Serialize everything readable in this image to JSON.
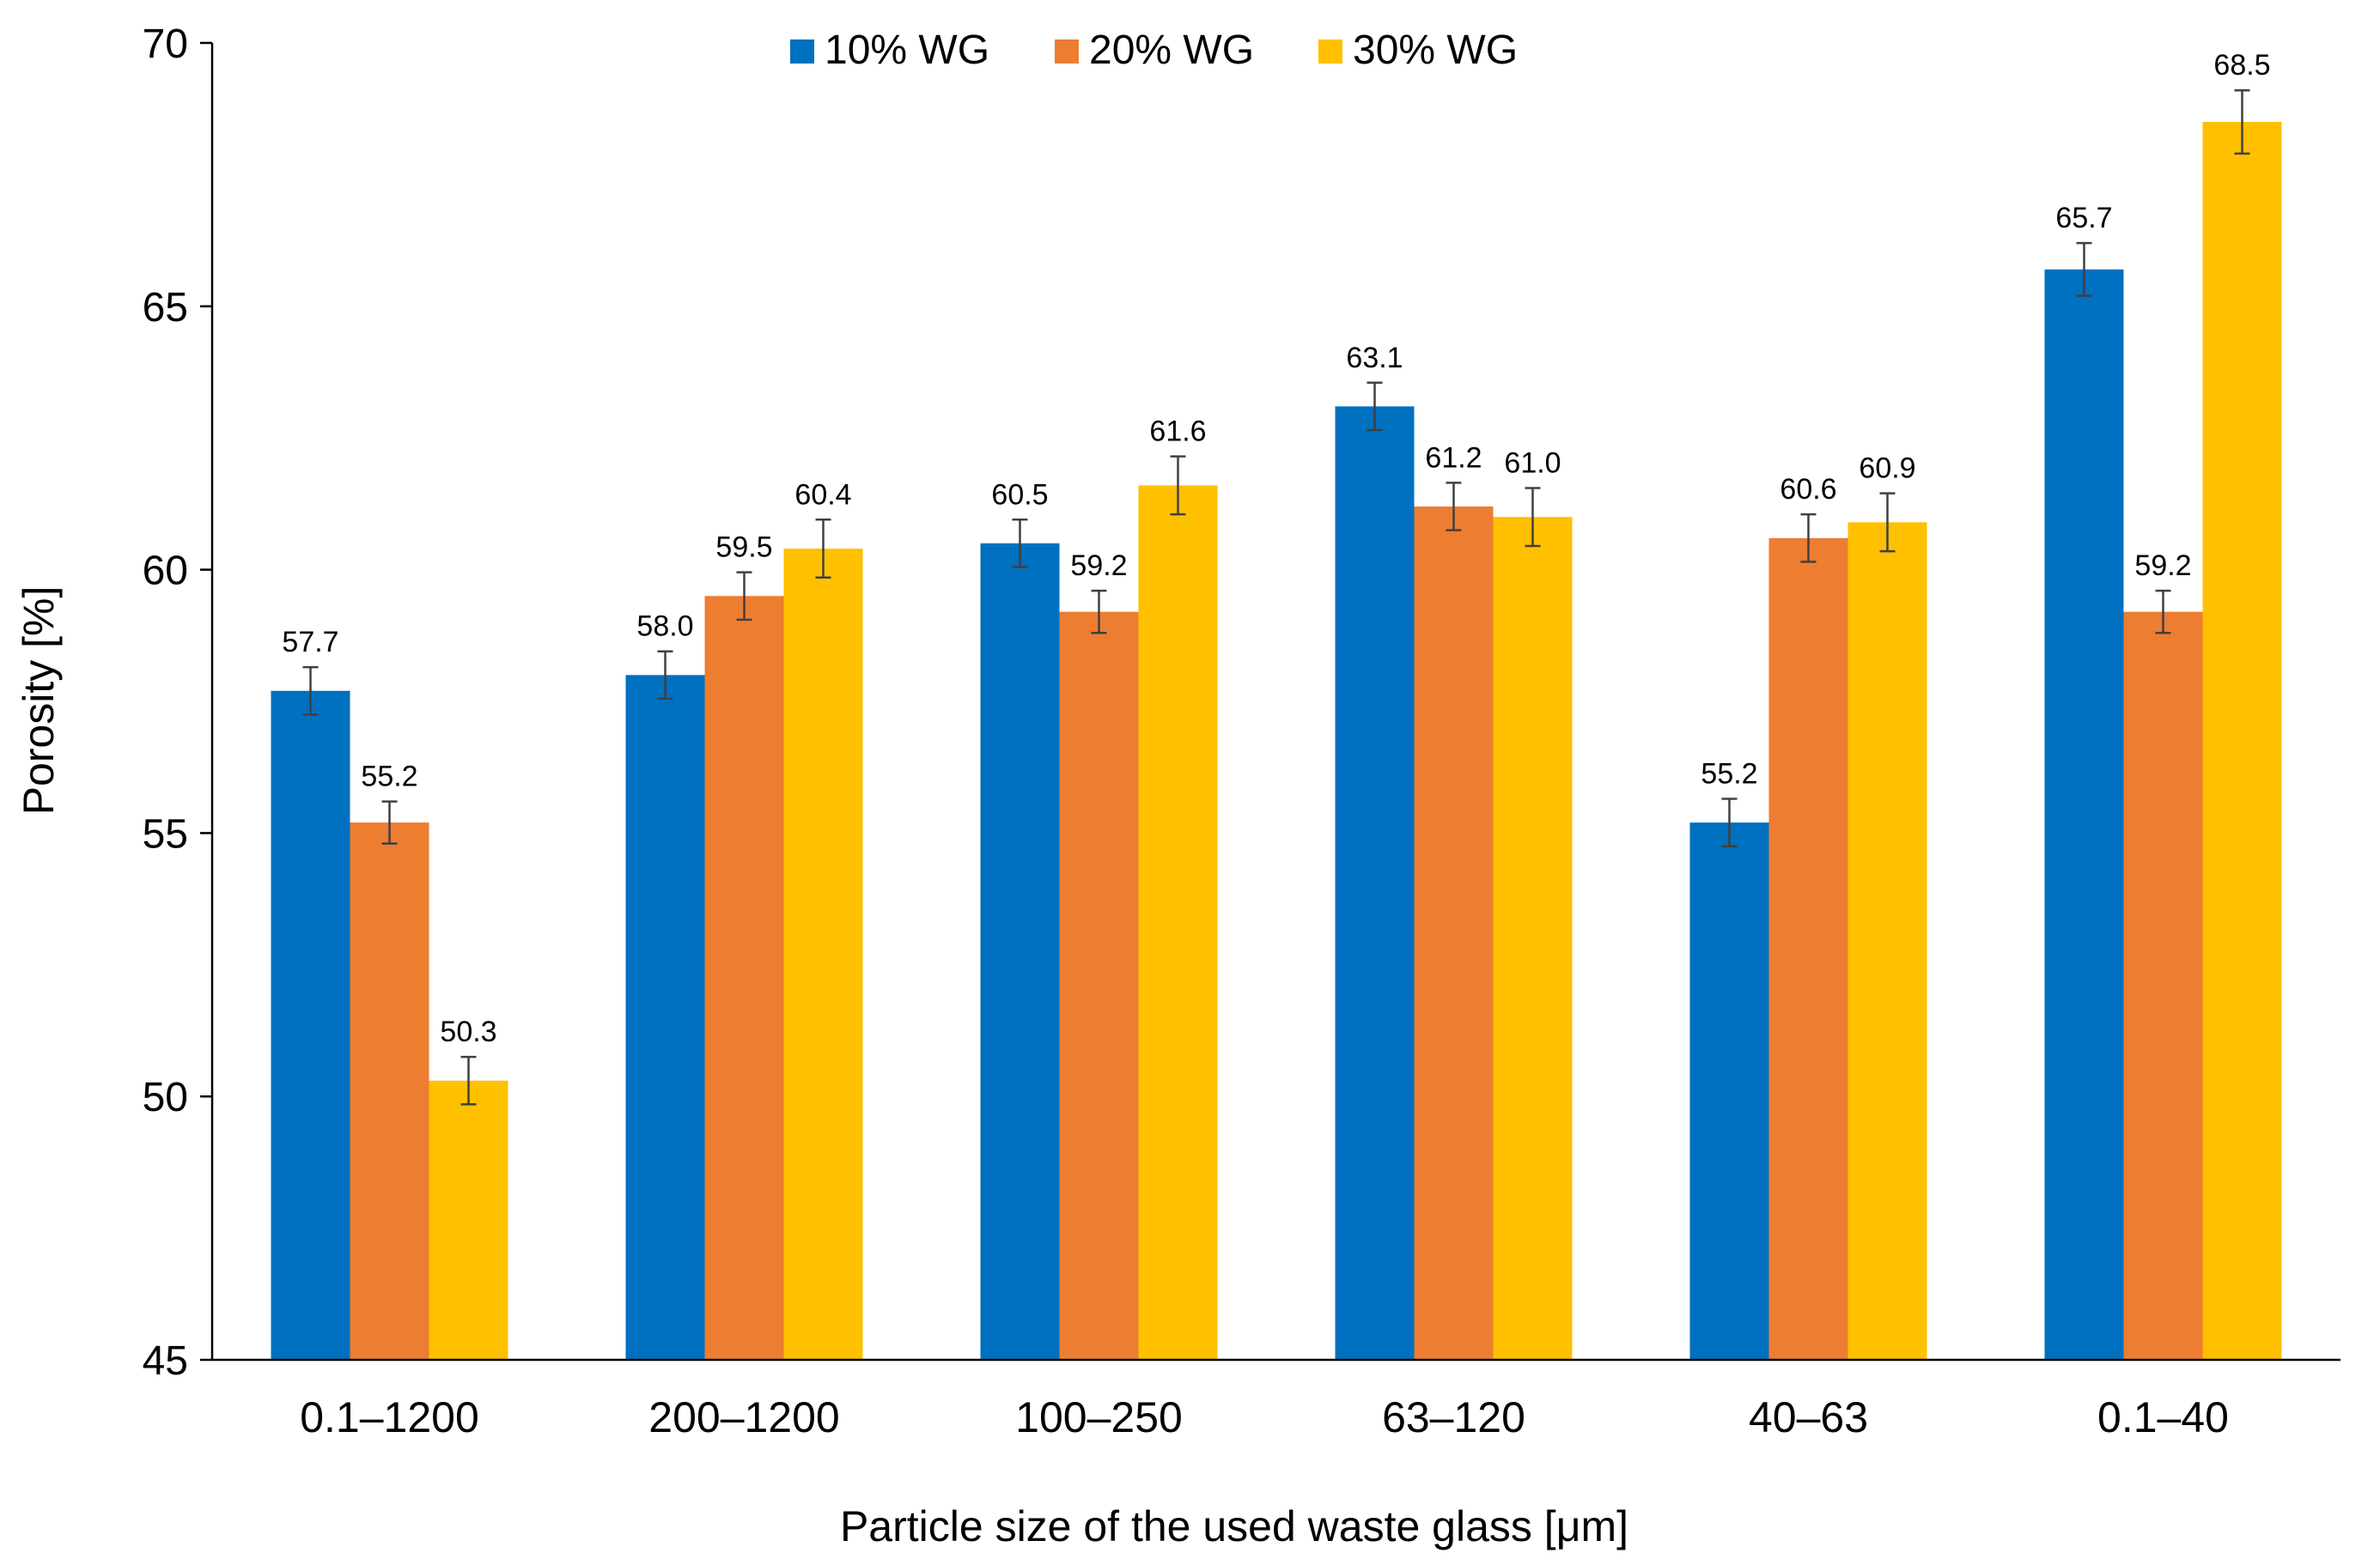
{
  "chart_data": {
    "type": "bar",
    "title": "",
    "xlabel": "Particle size of the used waste glass [μm]",
    "ylabel": "Porosity [%]",
    "ylim": [
      45,
      70
    ],
    "yticks": [
      45,
      50,
      55,
      60,
      65,
      70
    ],
    "grid": false,
    "legend_position": "top-center",
    "categories": [
      "0.1–1200",
      "200–1200",
      "100–250",
      "63–120",
      "40–63",
      "0.1–40"
    ],
    "series": [
      {
        "name": "10% WG",
        "color": "#0070C0",
        "values": [
          57.7,
          58.0,
          60.5,
          63.1,
          55.2,
          65.7
        ],
        "labels": [
          "57.7",
          "58.0",
          "60.5",
          "63.1",
          "55.2",
          "65.7"
        ],
        "error": [
          0.45,
          0.45,
          0.45,
          0.45,
          0.45,
          0.5
        ]
      },
      {
        "name": "20% WG",
        "color": "#ED7D31",
        "values": [
          55.2,
          59.5,
          59.2,
          61.2,
          60.6,
          59.2
        ],
        "labels": [
          "55.2",
          "59.5",
          "59.2",
          "61.2",
          "60.6",
          "59.2"
        ],
        "error": [
          0.4,
          0.45,
          0.4,
          0.45,
          0.45,
          0.4
        ]
      },
      {
        "name": "30% WG",
        "color": "#FFC000",
        "values": [
          50.3,
          60.4,
          61.6,
          61.0,
          60.9,
          68.5
        ],
        "labels": [
          "50.3",
          "60.4",
          "61.6",
          "61.0",
          "60.9",
          "68.5"
        ],
        "error": [
          0.45,
          0.55,
          0.55,
          0.55,
          0.55,
          0.6
        ]
      }
    ]
  }
}
